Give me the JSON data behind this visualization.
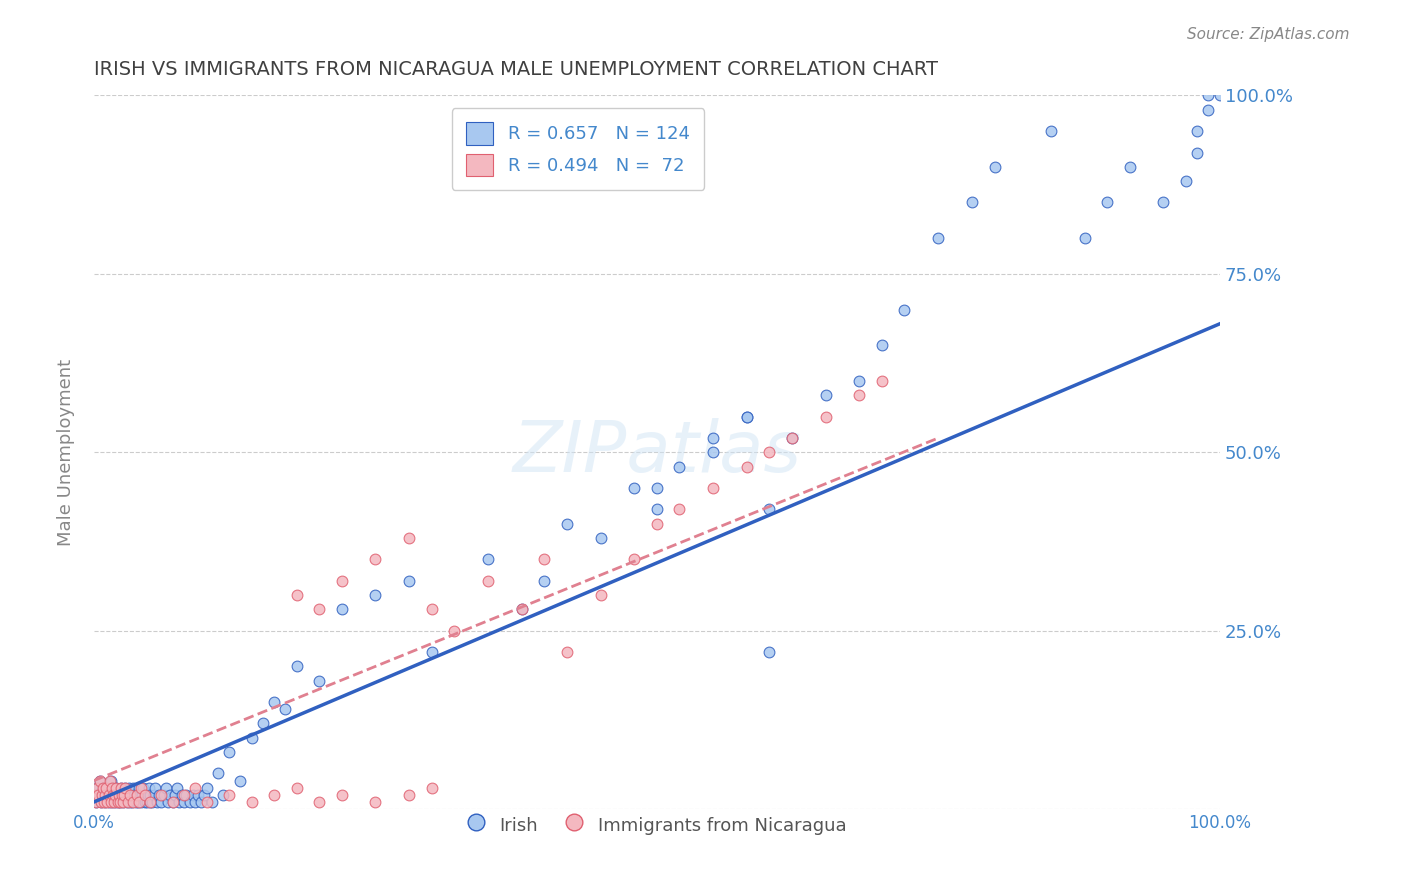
{
  "title": "IRISH VS IMMIGRANTS FROM NICARAGUA MALE UNEMPLOYMENT CORRELATION CHART",
  "source": "Source: ZipAtlas.com",
  "xlabel": "",
  "ylabel": "Male Unemployment",
  "watermark": "ZIPatlas",
  "legend_irish_R": 0.657,
  "legend_irish_N": 124,
  "legend_nica_R": 0.494,
  "legend_nica_N": 72,
  "irish_color": "#a8c8f0",
  "nica_color": "#f4b8c0",
  "irish_line_color": "#3060c0",
  "nica_line_color": "#e08090",
  "axis_label_color": "#4488cc",
  "title_color": "#404040",
  "grid_color": "#cccccc",
  "background_color": "#ffffff",
  "irish_scatter_x": [
    0.001,
    0.002,
    0.003,
    0.003,
    0.005,
    0.006,
    0.007,
    0.008,
    0.01,
    0.01,
    0.012,
    0.013,
    0.015,
    0.015,
    0.016,
    0.017,
    0.018,
    0.019,
    0.02,
    0.02,
    0.021,
    0.022,
    0.023,
    0.024,
    0.025,
    0.026,
    0.027,
    0.028,
    0.029,
    0.03,
    0.031,
    0.032,
    0.033,
    0.034,
    0.035,
    0.036,
    0.037,
    0.038,
    0.039,
    0.04,
    0.041,
    0.042,
    0.043,
    0.044,
    0.045,
    0.046,
    0.047,
    0.048,
    0.049,
    0.05,
    0.05,
    0.052,
    0.053,
    0.054,
    0.056,
    0.058,
    0.06,
    0.062,
    0.064,
    0.066,
    0.068,
    0.07,
    0.072,
    0.074,
    0.076,
    0.078,
    0.08,
    0.082,
    0.085,
    0.088,
    0.09,
    0.092,
    0.095,
    0.098,
    0.1,
    0.105,
    0.11,
    0.115,
    0.12,
    0.13,
    0.14,
    0.15,
    0.16,
    0.17,
    0.18,
    0.2,
    0.22,
    0.25,
    0.28,
    0.3,
    0.35,
    0.38,
    0.4,
    0.42,
    0.45,
    0.48,
    0.5,
    0.52,
    0.55,
    0.58,
    0.6,
    0.62,
    0.65,
    0.68,
    0.7,
    0.72,
    0.75,
    0.78,
    0.8,
    0.85,
    0.88,
    0.9,
    0.92,
    0.95,
    0.97,
    0.98,
    0.98,
    0.99,
    0.99,
    1.0,
    0.5,
    0.55,
    0.58,
    0.6
  ],
  "irish_scatter_y": [
    0.02,
    0.01,
    0.03,
    0.02,
    0.04,
    0.01,
    0.02,
    0.03,
    0.01,
    0.02,
    0.03,
    0.01,
    0.02,
    0.04,
    0.01,
    0.03,
    0.02,
    0.01,
    0.02,
    0.03,
    0.01,
    0.02,
    0.01,
    0.03,
    0.02,
    0.01,
    0.02,
    0.03,
    0.01,
    0.02,
    0.03,
    0.01,
    0.02,
    0.01,
    0.03,
    0.02,
    0.01,
    0.02,
    0.01,
    0.03,
    0.02,
    0.01,
    0.02,
    0.03,
    0.01,
    0.02,
    0.01,
    0.02,
    0.03,
    0.01,
    0.02,
    0.01,
    0.02,
    0.03,
    0.01,
    0.02,
    0.01,
    0.02,
    0.03,
    0.01,
    0.02,
    0.01,
    0.02,
    0.03,
    0.01,
    0.02,
    0.01,
    0.02,
    0.01,
    0.02,
    0.01,
    0.02,
    0.01,
    0.02,
    0.03,
    0.01,
    0.05,
    0.02,
    0.08,
    0.04,
    0.1,
    0.12,
    0.15,
    0.14,
    0.2,
    0.18,
    0.28,
    0.3,
    0.32,
    0.22,
    0.35,
    0.28,
    0.32,
    0.4,
    0.38,
    0.45,
    0.42,
    0.48,
    0.5,
    0.55,
    0.22,
    0.52,
    0.58,
    0.6,
    0.65,
    0.7,
    0.8,
    0.85,
    0.9,
    0.95,
    0.8,
    0.85,
    0.9,
    0.85,
    0.88,
    0.92,
    0.95,
    0.98,
    1.0,
    1.0,
    0.45,
    0.52,
    0.55,
    0.42
  ],
  "nica_scatter_x": [
    0.001,
    0.002,
    0.003,
    0.004,
    0.005,
    0.006,
    0.007,
    0.008,
    0.009,
    0.01,
    0.011,
    0.012,
    0.013,
    0.014,
    0.015,
    0.016,
    0.017,
    0.018,
    0.019,
    0.02,
    0.021,
    0.022,
    0.023,
    0.024,
    0.025,
    0.026,
    0.027,
    0.028,
    0.03,
    0.032,
    0.035,
    0.038,
    0.04,
    0.042,
    0.045,
    0.05,
    0.06,
    0.07,
    0.08,
    0.09,
    0.1,
    0.12,
    0.14,
    0.16,
    0.18,
    0.2,
    0.22,
    0.25,
    0.28,
    0.3,
    0.18,
    0.2,
    0.22,
    0.25,
    0.28,
    0.3,
    0.32,
    0.35,
    0.38,
    0.4,
    0.42,
    0.45,
    0.48,
    0.5,
    0.52,
    0.55,
    0.58,
    0.6,
    0.62,
    0.65,
    0.68,
    0.7
  ],
  "nica_scatter_y": [
    0.02,
    0.01,
    0.03,
    0.02,
    0.04,
    0.01,
    0.02,
    0.03,
    0.01,
    0.02,
    0.03,
    0.01,
    0.02,
    0.04,
    0.01,
    0.03,
    0.02,
    0.01,
    0.02,
    0.03,
    0.01,
    0.02,
    0.01,
    0.03,
    0.02,
    0.01,
    0.02,
    0.03,
    0.01,
    0.02,
    0.01,
    0.02,
    0.01,
    0.03,
    0.02,
    0.01,
    0.02,
    0.01,
    0.02,
    0.03,
    0.01,
    0.02,
    0.01,
    0.02,
    0.03,
    0.01,
    0.02,
    0.01,
    0.02,
    0.03,
    0.3,
    0.28,
    0.32,
    0.35,
    0.38,
    0.28,
    0.25,
    0.32,
    0.28,
    0.35,
    0.22,
    0.3,
    0.35,
    0.4,
    0.42,
    0.45,
    0.48,
    0.5,
    0.52,
    0.55,
    0.58,
    0.6
  ],
  "irish_trendline_x": [
    0.0,
    1.0
  ],
  "irish_trendline_y": [
    0.01,
    0.68
  ],
  "nica_trendline_x": [
    0.0,
    0.75
  ],
  "nica_trendline_y": [
    0.04,
    0.52
  ],
  "xlim": [
    0.0,
    1.0
  ],
  "ylim": [
    0.0,
    1.0
  ],
  "xtick_labels": [
    "0.0%",
    "100.0%"
  ],
  "ytick_labels_right": [
    "25.0%",
    "50.0%",
    "75.0%",
    "100.0%"
  ],
  "ytick_positions_right": [
    0.25,
    0.5,
    0.75,
    1.0
  ]
}
